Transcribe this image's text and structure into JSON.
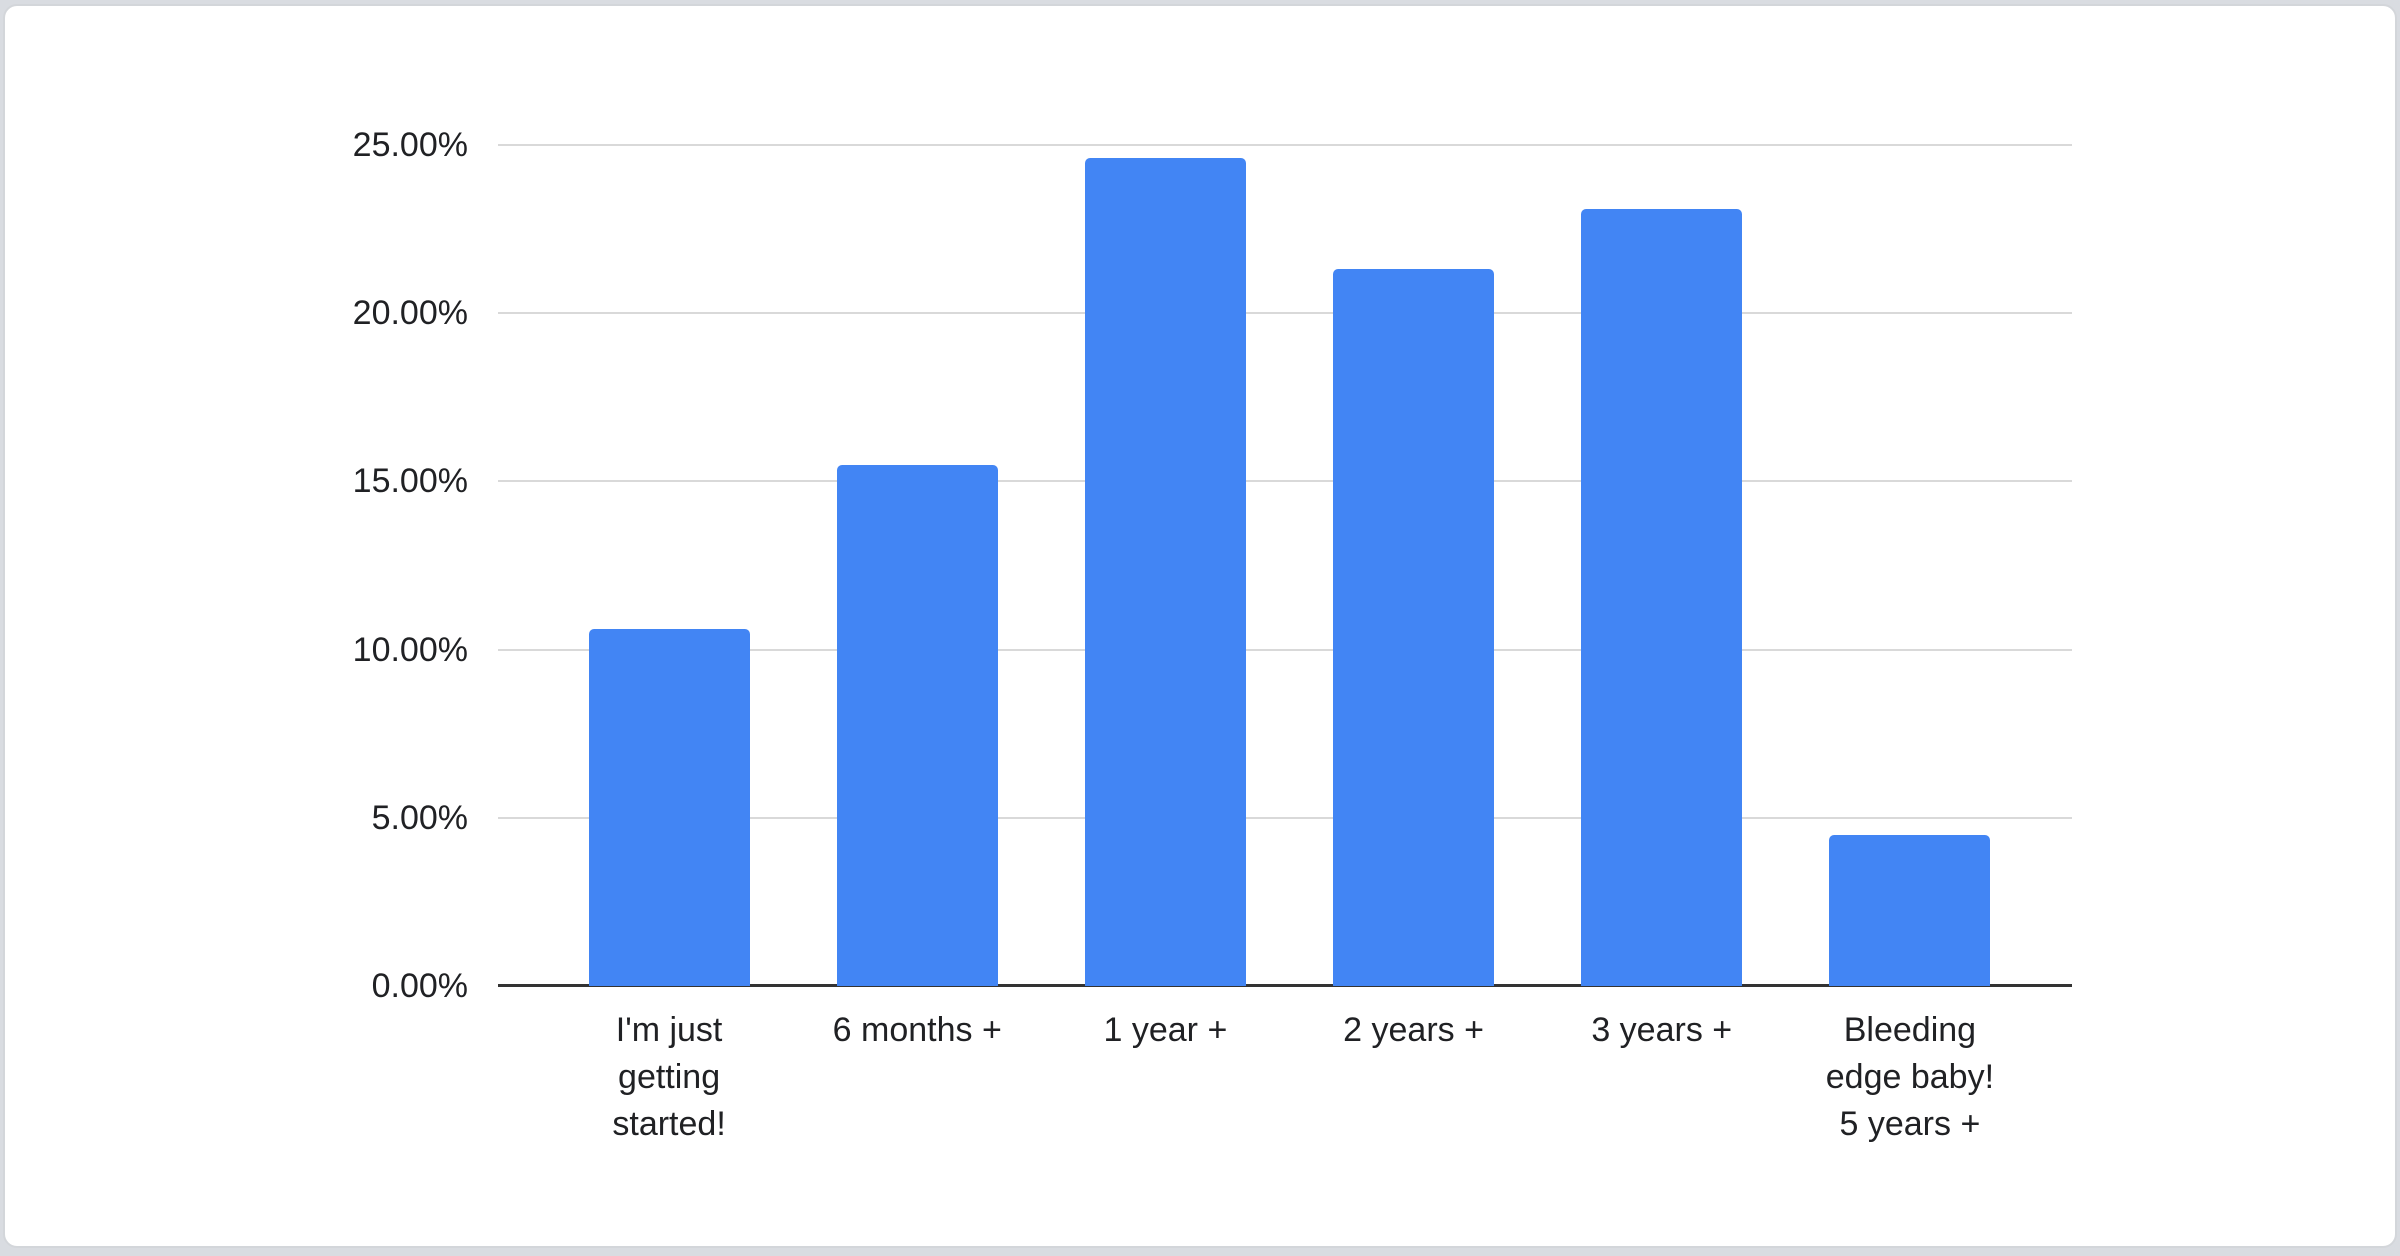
{
  "page": {
    "background_color": "#d9dce1",
    "card_background": "#ffffff",
    "card_border_color": "#d3d6da"
  },
  "chart_data": {
    "type": "bar",
    "title": "",
    "xlabel": "",
    "ylabel": "",
    "categories": [
      "I'm just\ngetting\nstarted!",
      "6 months +",
      "1 year +",
      "2 years +",
      "3 years +",
      "Bleeding\nedge baby!\n5 years +"
    ],
    "values": [
      10.6,
      15.5,
      24.6,
      21.3,
      23.1,
      4.5
    ],
    "value_unit": "percent",
    "y_ticks": [
      {
        "value": 0,
        "label": "0.00%"
      },
      {
        "value": 5,
        "label": "5.00%"
      },
      {
        "value": 10,
        "label": "10.00%"
      },
      {
        "value": 15,
        "label": "15.00%"
      },
      {
        "value": 20,
        "label": "20.00%"
      },
      {
        "value": 25,
        "label": "25.00%"
      }
    ],
    "ylim": [
      0,
      25
    ],
    "grid": true,
    "legend_position": "none",
    "bar_color": "#4285f4",
    "gridline_color": "#d9d9d9",
    "axis_line_color": "#333333",
    "label_color": "#202124"
  }
}
